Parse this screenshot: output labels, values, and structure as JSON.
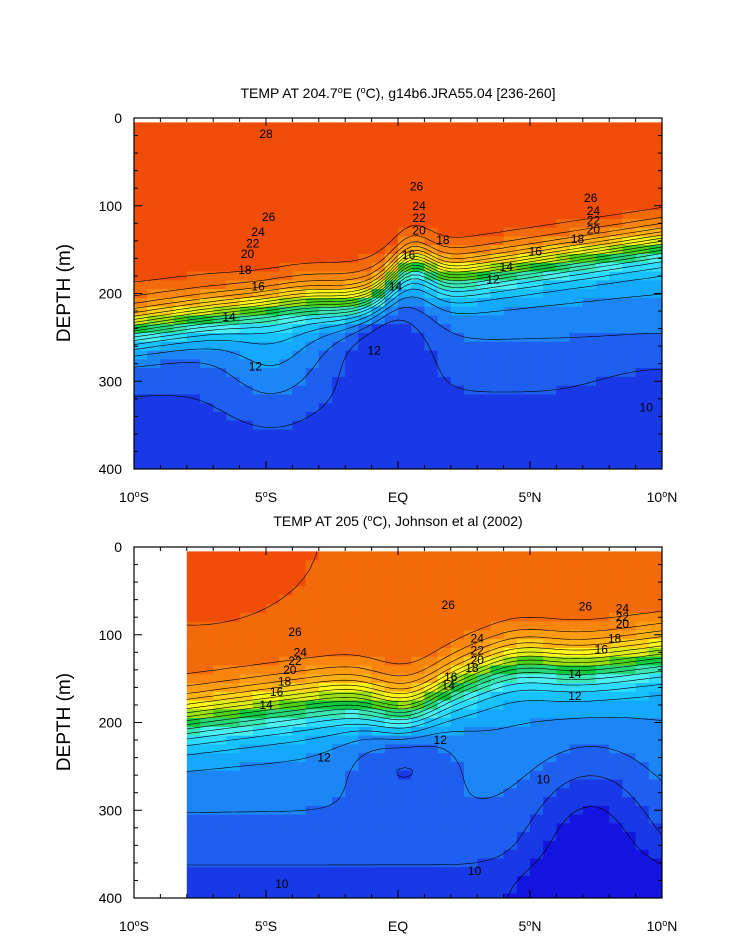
{
  "chart_data": [
    {
      "type": "heatmap",
      "subtype": "filled-contour",
      "title": "TEMP AT 204.7",
      "title_degree": "o",
      "title_rest": "E (",
      "title_unit_degree": "o",
      "title_tail": "C), g14b6.JRA55.04 [236-260]",
      "ylabel": "DEPTH (m)",
      "xlim": [
        -10,
        10
      ],
      "ylim": [
        400,
        0
      ],
      "data_xlim": [
        -10,
        10
      ],
      "data_ylim": [
        5,
        400
      ],
      "yticks": [
        "0",
        "100",
        "200",
        "300",
        "400"
      ],
      "xticks": [
        {
          "text": "10",
          "deg": "o",
          "suffix": "S"
        },
        {
          "text": "5",
          "deg": "o",
          "suffix": "S"
        },
        {
          "text": "EQ",
          "deg": "",
          "suffix": ""
        },
        {
          "text": "5",
          "deg": "o",
          "suffix": "N"
        },
        {
          "text": "10",
          "deg": "o",
          "suffix": "N"
        }
      ],
      "contour_levels": [
        10,
        11,
        12,
        13,
        14,
        15,
        16,
        17,
        18,
        19,
        20,
        21,
        22,
        23,
        24,
        25,
        26,
        27,
        28
      ],
      "labeled_levels": [
        10,
        12,
        14,
        16,
        18,
        20,
        22,
        24,
        26,
        28
      ],
      "contour_labels": [
        {
          "level": "28",
          "lat": -5.0,
          "depth": 18
        },
        {
          "level": "26",
          "lat": -4.9,
          "depth": 113
        },
        {
          "level": "24",
          "lat": -5.3,
          "depth": 130
        },
        {
          "level": "22",
          "lat": -5.5,
          "depth": 143
        },
        {
          "level": "20",
          "lat": -5.7,
          "depth": 155
        },
        {
          "level": "18",
          "lat": -5.8,
          "depth": 173
        },
        {
          "level": "16",
          "lat": -5.3,
          "depth": 192
        },
        {
          "level": "14",
          "lat": -6.4,
          "depth": 227
        },
        {
          "level": "12",
          "lat": -5.4,
          "depth": 283
        },
        {
          "level": "26",
          "lat": 0.7,
          "depth": 78
        },
        {
          "level": "24",
          "lat": 0.8,
          "depth": 100
        },
        {
          "level": "22",
          "lat": 0.8,
          "depth": 114
        },
        {
          "level": "20",
          "lat": 0.8,
          "depth": 128
        },
        {
          "level": "18",
          "lat": 1.7,
          "depth": 139
        },
        {
          "level": "16",
          "lat": 0.4,
          "depth": 156
        },
        {
          "level": "14",
          "lat": -0.1,
          "depth": 192
        },
        {
          "level": "12",
          "lat": -0.9,
          "depth": 265
        },
        {
          "level": "12",
          "lat": 3.6,
          "depth": 184
        },
        {
          "level": "26",
          "lat": 7.3,
          "depth": 91
        },
        {
          "level": "24",
          "lat": 7.4,
          "depth": 106
        },
        {
          "level": "22",
          "lat": 7.4,
          "depth": 117
        },
        {
          "level": "20",
          "lat": 7.4,
          "depth": 127
        },
        {
          "level": "18",
          "lat": 6.8,
          "depth": 138
        },
        {
          "level": "16",
          "lat": 5.2,
          "depth": 152
        },
        {
          "level": "14",
          "lat": 4.1,
          "depth": 170
        },
        {
          "level": "10",
          "lat": 9.4,
          "depth": 330
        }
      ],
      "grid": false,
      "colormap": [
        "#1a39e6",
        "#1f5ff0",
        "#1d86f7",
        "#15a9fb",
        "#18c3fd",
        "#2fdcff",
        "#4df0f0",
        "#3ce6b4",
        "#26d677",
        "#12c83e",
        "#4ed219",
        "#99e015",
        "#dfee1a",
        "#fff61c",
        "#ffd11a",
        "#ffb114",
        "#fc9c12",
        "#f7850e",
        "#f36a0b",
        "#ef4d08",
        "#e81f06"
      ]
    },
    {
      "type": "heatmap",
      "subtype": "filled-contour",
      "title": "TEMP AT 205 (",
      "title_degree": "o",
      "title_rest": "",
      "title_unit_degree": "",
      "title_tail": "C), Johnson et al (2002)",
      "ylabel": "DEPTH (m)",
      "xlim": [
        -10,
        10
      ],
      "ylim": [
        400,
        0
      ],
      "data_xlim": [
        -8,
        10
      ],
      "data_ylim": [
        5,
        400
      ],
      "yticks": [
        "0",
        "100",
        "200",
        "300",
        "400"
      ],
      "xticks": [
        {
          "text": "10",
          "deg": "o",
          "suffix": "S"
        },
        {
          "text": "5",
          "deg": "o",
          "suffix": "S"
        },
        {
          "text": "EQ",
          "deg": "",
          "suffix": ""
        },
        {
          "text": "5",
          "deg": "o",
          "suffix": "N"
        },
        {
          "text": "10",
          "deg": "o",
          "suffix": "N"
        }
      ],
      "contour_levels": [
        9,
        10,
        11,
        12,
        13,
        14,
        15,
        16,
        17,
        18,
        19,
        20,
        21,
        22,
        23,
        24,
        25,
        26,
        27,
        28
      ],
      "labeled_levels": [
        10,
        12,
        14,
        16,
        18,
        20,
        22,
        24,
        26
      ],
      "contour_labels": [
        {
          "level": "26",
          "lat": -3.9,
          "depth": 97
        },
        {
          "level": "24",
          "lat": -3.7,
          "depth": 120
        },
        {
          "level": "22",
          "lat": -3.9,
          "depth": 130
        },
        {
          "level": "20",
          "lat": -4.1,
          "depth": 140
        },
        {
          "level": "18",
          "lat": -4.3,
          "depth": 153
        },
        {
          "level": "16",
          "lat": -4.6,
          "depth": 165
        },
        {
          "level": "14",
          "lat": -5.0,
          "depth": 180
        },
        {
          "level": "12",
          "lat": -2.8,
          "depth": 240
        },
        {
          "level": "26",
          "lat": 1.9,
          "depth": 66
        },
        {
          "level": "24",
          "lat": 3.0,
          "depth": 104
        },
        {
          "level": "22",
          "lat": 3.0,
          "depth": 118
        },
        {
          "level": "20",
          "lat": 3.0,
          "depth": 129
        },
        {
          "level": "18",
          "lat": 2.8,
          "depth": 138
        },
        {
          "level": "16",
          "lat": 2.0,
          "depth": 148
        },
        {
          "level": "14",
          "lat": 1.9,
          "depth": 158
        },
        {
          "level": "12",
          "lat": 1.6,
          "depth": 220
        },
        {
          "level": "26",
          "lat": 7.1,
          "depth": 68
        },
        {
          "level": "24",
          "lat": 8.5,
          "depth": 70
        },
        {
          "level": "22",
          "lat": 8.5,
          "depth": 80
        },
        {
          "level": "20",
          "lat": 8.5,
          "depth": 88
        },
        {
          "level": "18",
          "lat": 8.2,
          "depth": 104
        },
        {
          "level": "16",
          "lat": 7.7,
          "depth": 117
        },
        {
          "level": "14",
          "lat": 6.7,
          "depth": 145
        },
        {
          "level": "12",
          "lat": 6.7,
          "depth": 170
        },
        {
          "level": "10",
          "lat": 5.5,
          "depth": 265
        },
        {
          "level": "10",
          "lat": -4.4,
          "depth": 384
        },
        {
          "level": "10",
          "lat": 2.9,
          "depth": 369
        }
      ],
      "grid": false,
      "colormap": [
        "#1414e0",
        "#1a39e6",
        "#1f5ff0",
        "#1d86f7",
        "#15a9fb",
        "#18c3fd",
        "#2fdcff",
        "#4df0f0",
        "#3ce6b4",
        "#26d677",
        "#12c83e",
        "#4ed219",
        "#99e015",
        "#dfee1a",
        "#fff61c",
        "#ffd11a",
        "#ffb114",
        "#fc9c12",
        "#f7850e",
        "#f36a0b",
        "#ef4d08",
        "#e81f06"
      ]
    }
  ]
}
